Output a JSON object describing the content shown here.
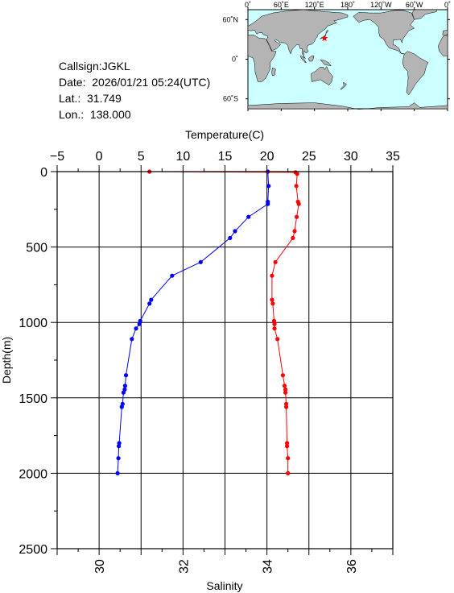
{
  "station": {
    "callsign_line": "Callsign:JGKL",
    "date_line": "Date:  2026/01/21 05:24(UTC)",
    "lat_line": "Lat.:  31.749",
    "lon_line": "Lon.:  138.000"
  },
  "map": {
    "lon_labels": [
      "0˚",
      "60˚E",
      "120˚E",
      "180˚",
      "120˚W",
      "60˚W",
      "0˚"
    ],
    "lat_labels": [
      "60˚N",
      "0˚",
      "60˚S"
    ],
    "ocean_color": "#ccffff",
    "land_color": "#b4b4b4",
    "marker_color": "#ff0000",
    "marker": {
      "lat": 31.749,
      "lon": 138.0
    }
  },
  "chart_data": {
    "type": "line",
    "ylabel": "Depth(m)",
    "ylim": [
      2500,
      0
    ],
    "y_ticks": [
      "0",
      "500",
      "1000",
      "1500",
      "2000",
      "2500"
    ],
    "top_axis": {
      "label": "Temperature(C)",
      "lim": [
        -5,
        35
      ],
      "ticks": [
        "−5",
        "0",
        "5",
        "10",
        "15",
        "20",
        "25",
        "30",
        "35"
      ]
    },
    "bottom_axis": {
      "label": "Salinity",
      "lim": [
        29,
        37
      ],
      "ticks": [
        "30",
        "32",
        "34",
        "36"
      ]
    },
    "grid": true,
    "series": [
      {
        "axis": "top",
        "color": "#0000ff",
        "points": [
          [
            20.1,
            0
          ],
          [
            20.2,
            95
          ],
          [
            20.1,
            200
          ],
          [
            20.1,
            215
          ],
          [
            17.8,
            300
          ],
          [
            16.2,
            395
          ],
          [
            15.6,
            440
          ],
          [
            12.1,
            600
          ],
          [
            8.7,
            690
          ],
          [
            6.2,
            850
          ],
          [
            6.0,
            875
          ],
          [
            4.9,
            990
          ],
          [
            4.8,
            1010
          ],
          [
            4.4,
            1040
          ],
          [
            3.9,
            1110
          ],
          [
            3.2,
            1350
          ],
          [
            3.1,
            1420
          ],
          [
            3.05,
            1445
          ],
          [
            2.9,
            1465
          ],
          [
            2.8,
            1540
          ],
          [
            2.7,
            1560
          ],
          [
            2.4,
            1800
          ],
          [
            2.35,
            1820
          ],
          [
            2.3,
            1900
          ],
          [
            2.2,
            2000
          ]
        ]
      },
      {
        "axis": "bottom",
        "color": "#ff0000",
        "points": [
          [
            31.2,
            0
          ],
          [
            34.68,
            5
          ],
          [
            34.72,
            15
          ],
          [
            34.7,
            95
          ],
          [
            34.74,
            200
          ],
          [
            34.76,
            215
          ],
          [
            34.71,
            300
          ],
          [
            34.66,
            395
          ],
          [
            34.62,
            440
          ],
          [
            34.2,
            600
          ],
          [
            34.12,
            690
          ],
          [
            34.12,
            850
          ],
          [
            34.14,
            875
          ],
          [
            34.17,
            990
          ],
          [
            34.18,
            1010
          ],
          [
            34.18,
            1040
          ],
          [
            34.25,
            1110
          ],
          [
            34.38,
            1350
          ],
          [
            34.42,
            1420
          ],
          [
            34.44,
            1445
          ],
          [
            34.44,
            1465
          ],
          [
            34.46,
            1540
          ],
          [
            34.46,
            1560
          ],
          [
            34.48,
            1800
          ],
          [
            34.48,
            1820
          ],
          [
            34.5,
            1900
          ],
          [
            34.5,
            2000
          ]
        ]
      }
    ]
  }
}
